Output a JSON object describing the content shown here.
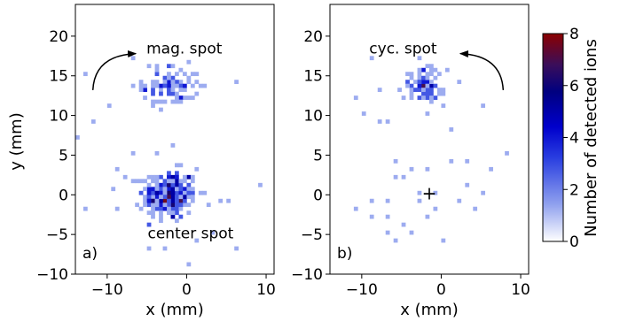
{
  "chart_data": [
    {
      "id": "a",
      "type": "heatmap",
      "panel_label": "a)",
      "xlabel": "x (mm)",
      "ylabel": "y (mm)",
      "xlim": [
        -14,
        11
      ],
      "ylim": [
        -10,
        24
      ],
      "xticks": [
        -10,
        0,
        10
      ],
      "yticks": [
        -10,
        -5,
        0,
        5,
        10,
        15,
        20
      ],
      "annotations": [
        {
          "text": "mag. spot",
          "x": -0.3,
          "y": 18.5
        },
        {
          "text": "center spot",
          "x": 0.5,
          "y": -4.8
        }
      ],
      "arrow": {
        "from": [
          -11.8,
          13.2
        ],
        "to": [
          -6.4,
          17.8
        ],
        "direction": "clockwise"
      },
      "clusters": [
        {
          "cx": -2.2,
          "cy": 0.0,
          "sx": 1.7,
          "sy": 1.6,
          "count": 250
        },
        {
          "cx": -2.0,
          "cy": 13.8,
          "sx": 1.8,
          "sy": 1.3,
          "count": 95
        }
      ],
      "scatter_points": [
        [
          -6,
          -2
        ],
        [
          -5,
          2
        ],
        [
          -4,
          5
        ],
        [
          -9,
          3
        ],
        [
          1,
          3
        ],
        [
          -2,
          6
        ],
        [
          4,
          -1
        ],
        [
          6,
          -7
        ],
        [
          0,
          -9
        ],
        [
          9,
          1
        ],
        [
          -10,
          11
        ],
        [
          -7,
          5
        ],
        [
          -5,
          -4
        ],
        [
          2,
          0
        ],
        [
          -7,
          17
        ],
        [
          -13,
          -2
        ],
        [
          -12,
          9
        ],
        [
          -14,
          7
        ],
        [
          3,
          -5
        ],
        [
          -9,
          -2
        ],
        [
          5,
          -1
        ],
        [
          -3,
          -7
        ],
        [
          -13,
          15
        ],
        [
          -5,
          -1
        ],
        [
          1,
          -6
        ],
        [
          6,
          14
        ],
        [
          -1,
          12
        ],
        [
          -8,
          2
        ],
        [
          -6,
          0
        ]
      ]
    },
    {
      "id": "b",
      "type": "heatmap",
      "panel_label": "b)",
      "xlabel": "x (mm)",
      "ylabel": "",
      "xlim": [
        -14,
        11
      ],
      "ylim": [
        -10,
        24
      ],
      "xticks": [
        -10,
        0,
        10
      ],
      "yticks": [
        -10,
        -5,
        0,
        5,
        10,
        15,
        20
      ],
      "annotations": [
        {
          "text": "cyc. spot",
          "x": -4.8,
          "y": 18.5
        }
      ],
      "marker": {
        "symbol": "+",
        "x": -1.5,
        "y": 0.2
      },
      "arrow": {
        "from": [
          7.8,
          13.2
        ],
        "to": [
          2.4,
          17.8
        ],
        "direction": "counterclockwise"
      },
      "clusters": [
        {
          "cx": -2.2,
          "cy": 13.8,
          "sx": 1.3,
          "sy": 1.1,
          "count": 85
        }
      ],
      "scatter_points": [
        [
          -9,
          17
        ],
        [
          -11,
          12
        ],
        [
          -8,
          9
        ],
        [
          -7,
          9
        ],
        [
          -6,
          4
        ],
        [
          -4,
          3
        ],
        [
          -2,
          3
        ],
        [
          -3,
          0
        ],
        [
          -5,
          2
        ],
        [
          -7,
          -1
        ],
        [
          -9,
          -3
        ],
        [
          -1,
          -2
        ],
        [
          1,
          4
        ],
        [
          3,
          4
        ],
        [
          5,
          11
        ],
        [
          6,
          3
        ],
        [
          4,
          -2
        ],
        [
          2,
          -1
        ],
        [
          0,
          -6
        ],
        [
          -4,
          -5
        ],
        [
          -6,
          -6
        ],
        [
          -3,
          -1
        ],
        [
          -9,
          -1
        ],
        [
          -7,
          -3
        ],
        [
          -11,
          -2
        ],
        [
          -8,
          13
        ],
        [
          -2,
          10
        ],
        [
          8,
          5
        ],
        [
          0,
          11
        ],
        [
          -5,
          -4
        ],
        [
          -1,
          0
        ],
        [
          3,
          1
        ],
        [
          -10,
          10
        ],
        [
          -4,
          12
        ],
        [
          2,
          14
        ],
        [
          -7,
          -5
        ],
        [
          -2,
          -3
        ],
        [
          5,
          0
        ],
        [
          -6,
          2
        ],
        [
          1,
          8
        ]
      ]
    }
  ],
  "colorbar": {
    "label": "Number of detected ions",
    "min": 0,
    "max": 8,
    "ticks": [
      0,
      2,
      4,
      6,
      8
    ],
    "colors": [
      "#ffffff",
      "#8fa0ee",
      "#2a3fe0",
      "#0000cc",
      "#000080",
      "#3a0e5a",
      "#6e1020",
      "#8b0000"
    ]
  }
}
